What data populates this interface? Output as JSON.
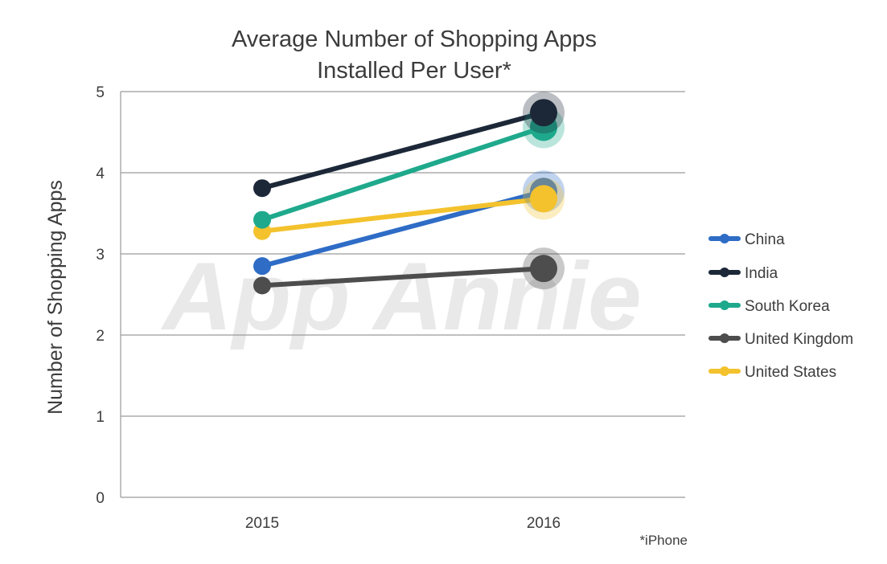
{
  "chart_data": {
    "type": "line",
    "title_line1": "Average Number of Shopping Apps",
    "title_line2": "Installed Per User*",
    "xlabel": "",
    "ylabel": "Number of Shopping Apps",
    "categories": [
      "2015",
      "2016"
    ],
    "ylim": [
      0,
      5
    ],
    "yticks": [
      "0",
      "1",
      "2",
      "3",
      "4",
      "5"
    ],
    "grid": true,
    "legend_position": "right",
    "footnote": "*iPhone",
    "watermark": "App Annie",
    "series": [
      {
        "name": "China",
        "color": "#2e6cc6",
        "values": [
          2.85,
          3.77
        ]
      },
      {
        "name": "India",
        "color": "#1c2838",
        "values": [
          3.81,
          4.74
        ]
      },
      {
        "name": "South Korea",
        "color": "#1fa98c",
        "values": [
          3.42,
          4.56
        ]
      },
      {
        "name": "United Kingdom",
        "color": "#4d4d4d",
        "values": [
          2.61,
          2.82
        ]
      },
      {
        "name": "United States",
        "color": "#f3c22d",
        "values": [
          3.28,
          3.68
        ]
      }
    ]
  }
}
